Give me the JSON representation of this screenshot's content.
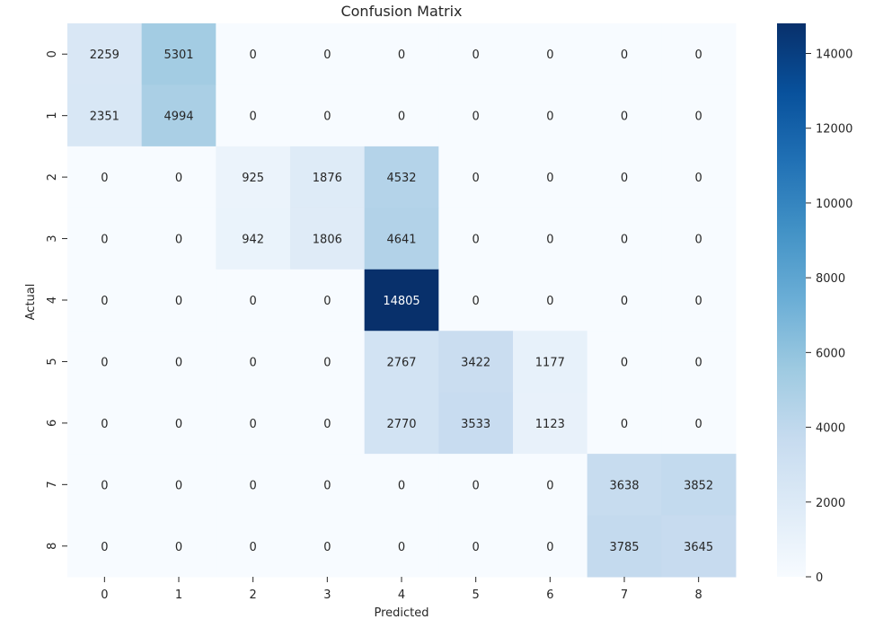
{
  "chart_data": {
    "type": "heatmap",
    "title": "Confusion Matrix",
    "xlabel": "Predicted",
    "ylabel": "Actual",
    "x_categories": [
      "0",
      "1",
      "2",
      "3",
      "4",
      "5",
      "6",
      "7",
      "8"
    ],
    "y_categories": [
      "0",
      "1",
      "2",
      "3",
      "4",
      "5",
      "6",
      "7",
      "8"
    ],
    "values": [
      [
        2259,
        5301,
        0,
        0,
        0,
        0,
        0,
        0,
        0
      ],
      [
        2351,
        4994,
        0,
        0,
        0,
        0,
        0,
        0,
        0
      ],
      [
        0,
        0,
        925,
        1876,
        4532,
        0,
        0,
        0,
        0
      ],
      [
        0,
        0,
        942,
        1806,
        4641,
        0,
        0,
        0,
        0
      ],
      [
        0,
        0,
        0,
        0,
        14805,
        0,
        0,
        0,
        0
      ],
      [
        0,
        0,
        0,
        0,
        2767,
        3422,
        1177,
        0,
        0
      ],
      [
        0,
        0,
        0,
        0,
        2770,
        3533,
        1123,
        0,
        0
      ],
      [
        0,
        0,
        0,
        0,
        0,
        0,
        0,
        3638,
        3852
      ],
      [
        0,
        0,
        0,
        0,
        0,
        0,
        0,
        3785,
        3645
      ]
    ],
    "colormap": "Blues",
    "colorbar": {
      "range": [
        0,
        14805
      ],
      "ticks": [
        "0",
        "2000",
        "4000",
        "6000",
        "8000",
        "10000",
        "12000",
        "14000"
      ]
    },
    "annotations": true,
    "grid": false
  }
}
